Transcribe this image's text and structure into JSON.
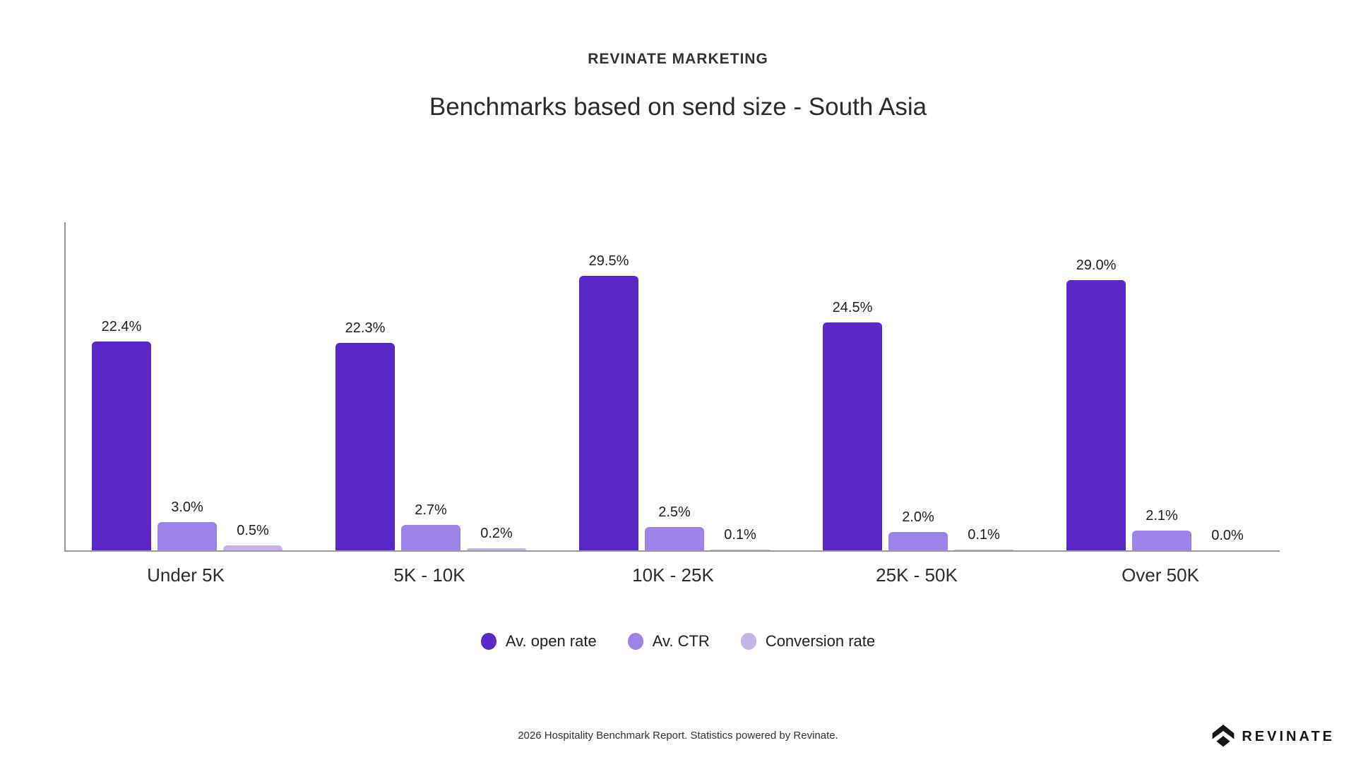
{
  "header": {
    "brand": "REVINATE MARKETING",
    "title": "Benchmarks based on send size - South Asia"
  },
  "chart_data": {
    "type": "bar",
    "categories": [
      "Under 5K",
      "5K - 10K",
      "10K - 25K",
      "25K - 50K",
      "Over 50K"
    ],
    "series": [
      {
        "name": "Av. open rate",
        "color": "#5a28c8",
        "values": [
          22.4,
          22.3,
          29.5,
          24.5,
          29.0
        ],
        "value_labels": [
          "22.4%",
          "22.3%",
          "29.5%",
          "24.5%",
          "29.0%"
        ]
      },
      {
        "name": "Av. CTR",
        "color": "#9c82e9",
        "values": [
          3.0,
          2.7,
          2.5,
          2.0,
          2.1
        ],
        "value_labels": [
          "3.0%",
          "2.7%",
          "2.5%",
          "2.0%",
          "2.1%"
        ]
      },
      {
        "name": "Conversion rate",
        "color": "#c3b3e9",
        "values": [
          0.5,
          0.2,
          0.1,
          0.1,
          0.0
        ],
        "value_labels": [
          "0.5%",
          "0.2%",
          "0.1%",
          "0.1%",
          "0.0%"
        ]
      }
    ],
    "title": "Benchmarks based on send size - South Asia",
    "xlabel": "",
    "ylabel": "",
    "ylim": [
      0,
      31
    ],
    "grid": false,
    "legend_position": "bottom",
    "axis_color": "#999999"
  },
  "footer": {
    "note": "2026 Hospitality Benchmark Report. Statistics powered by Revinate.",
    "logo_text": "REVINATE"
  }
}
